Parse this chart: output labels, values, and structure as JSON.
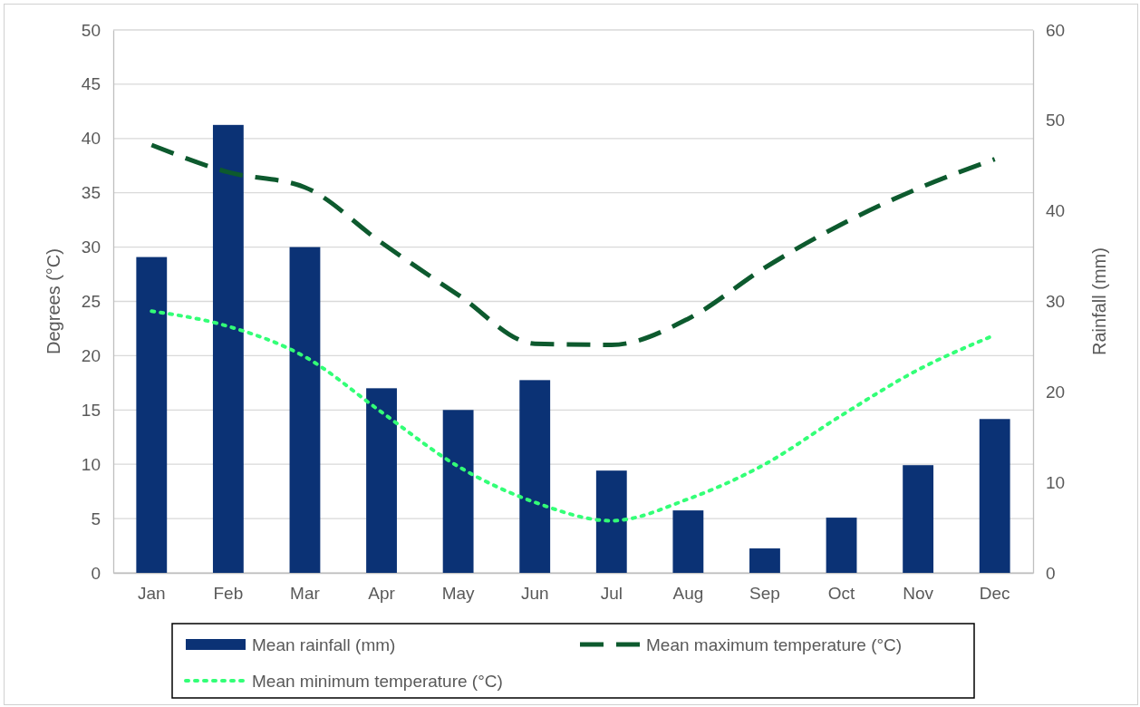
{
  "chart_data": {
    "type": "bar",
    "ylabel": "Degrees (°C)",
    "y2label": "Rainfall (mm)",
    "categories": [
      "Jan",
      "Feb",
      "Mar",
      "Apr",
      "May",
      "Jun",
      "Jul",
      "Aug",
      "Sep",
      "Oct",
      "Nov",
      "Dec"
    ],
    "series": [
      {
        "name": "Mean rainfall (mm)",
        "axis": "y2",
        "color": "#0b3275",
        "values": [
          34.9,
          49.5,
          36,
          20.4,
          18,
          21.3,
          11.3,
          6.9,
          2.7,
          6.1,
          11.9,
          17
        ]
      },
      {
        "name": "Mean maximum temperature (°C)",
        "type": "line",
        "line_style": "dashed",
        "color": "#0d5a2e",
        "values": [
          39.4,
          36.9,
          35.5,
          30.4,
          25.6,
          21.1,
          21,
          23.4,
          28.1,
          32.1,
          35.4,
          38.1
        ]
      },
      {
        "name": "Mean minimum temperature (°C)",
        "type": "line",
        "line_style": "dotted",
        "color": "#33ff77",
        "values": [
          24.1,
          22.7,
          19.9,
          14.8,
          9.8,
          6.5,
          4.8,
          6.8,
          10,
          14.5,
          18.7,
          21.9
        ]
      }
    ],
    "ylim": [
      0,
      50
    ],
    "yticks": [
      0,
      5,
      10,
      15,
      20,
      25,
      30,
      35,
      40,
      45,
      50
    ],
    "y2lim": [
      0,
      60
    ],
    "y2ticks": [
      0,
      10,
      20,
      30,
      40,
      50,
      60
    ],
    "grid": "y",
    "legend": "bottom",
    "marker": "none"
  }
}
